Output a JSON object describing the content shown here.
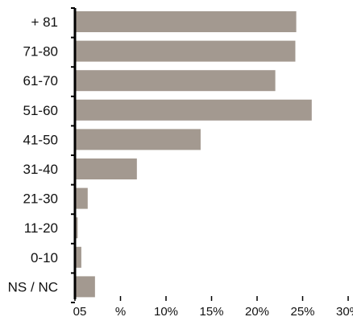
{
  "chart_data": {
    "type": "bar",
    "orientation": "horizontal",
    "categories": [
      "+ 81",
      "71-80",
      "61-70",
      "51-60",
      "41-50",
      "31-40",
      "21-30",
      "11-20",
      "0-10",
      "NS / NC"
    ],
    "values": [
      24.3,
      24.2,
      22.0,
      26.0,
      13.8,
      6.8,
      1.4,
      0.3,
      0.7,
      2.2
    ],
    "xlim": [
      0,
      30
    ],
    "x_tick_labels": [
      "05",
      "%",
      "10%",
      "15%",
      "20%",
      "25%",
      "30%"
    ],
    "x_tick_values": [
      0,
      5,
      10,
      15,
      20,
      25,
      30
    ],
    "title": "",
    "xlabel": "",
    "ylabel": "",
    "grid": false,
    "legend": "none",
    "bar_color": "#a39990",
    "axis_color": "#000000"
  }
}
